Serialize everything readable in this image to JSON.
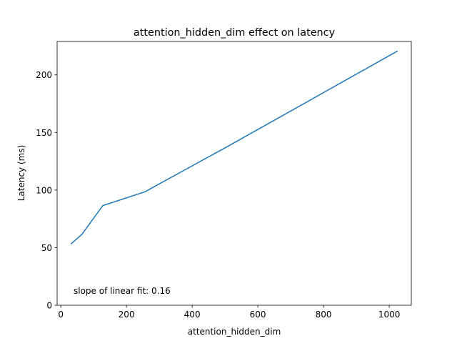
{
  "chart_data": {
    "type": "line",
    "title": "attention_hidden_dim effect on latency",
    "xlabel": "attention_hidden_dim",
    "ylabel": "Latency (ms)",
    "xlim": [
      -11.2,
      1067.2
    ],
    "ylim": [
      0,
      229
    ],
    "xticks": [
      0,
      200,
      400,
      600,
      800,
      1000
    ],
    "yticks": [
      0,
      50,
      100,
      150,
      200
    ],
    "grid": false,
    "series": [
      {
        "color": "#1f77b4",
        "x": [
          32,
          64,
          128,
          256,
          512,
          1024
        ],
        "y": [
          53.5,
          61.5,
          86.5,
          98.5,
          138.5,
          220.5
        ]
      }
    ],
    "annotation": "slope of linear fit: 0.16"
  }
}
